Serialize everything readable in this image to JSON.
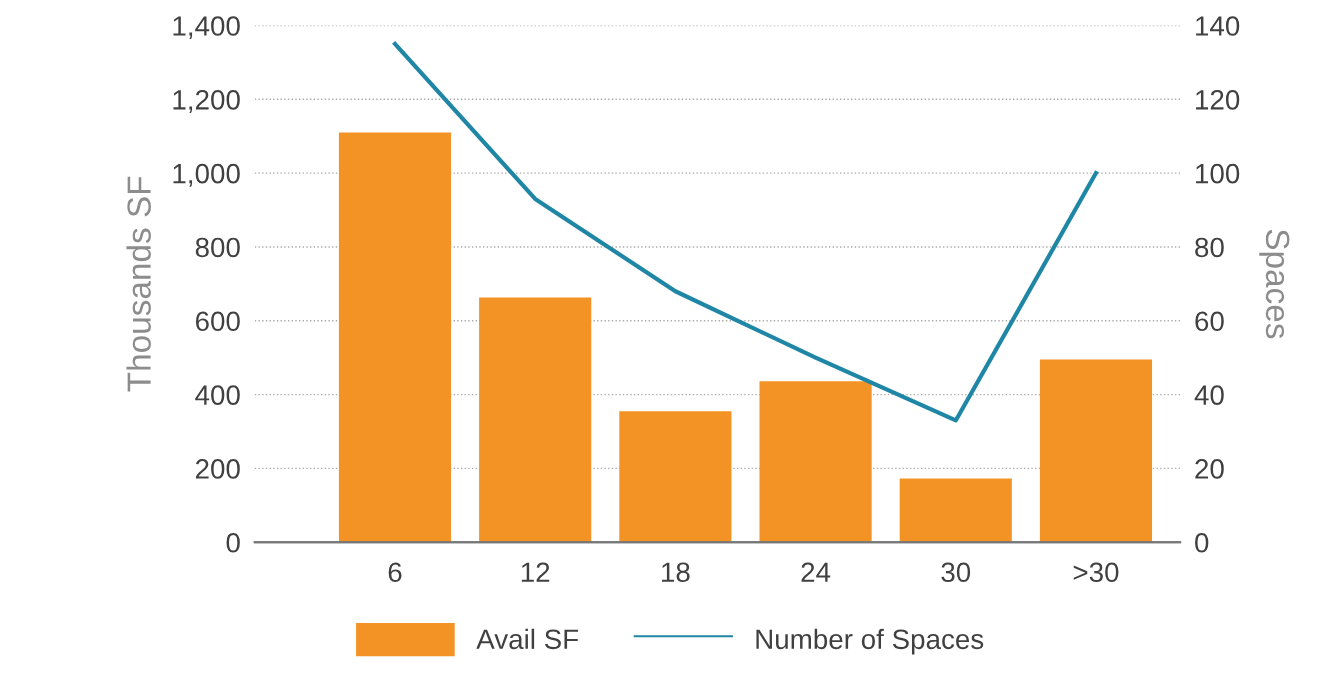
{
  "chart_data": {
    "type": "bar",
    "categories": [
      "6",
      "12",
      "18",
      "24",
      "30",
      ">30"
    ],
    "series": [
      {
        "name": "Avail SF",
        "color": "#f39325",
        "values": [
          1110,
          663,
          355,
          436,
          173,
          495
        ]
      },
      {
        "name": "Number of Spaces",
        "type": "line",
        "axis": "y2",
        "color": "#1f87a5",
        "values": [
          135,
          93,
          68,
          50,
          33,
          100
        ]
      }
    ],
    "ylabel": "Thousands SF",
    "y2label": "Spaces",
    "ylim": [
      0,
      1400
    ],
    "yticks": [
      {
        "value": 0,
        "label": "0"
      },
      {
        "value": 200,
        "label": "200"
      },
      {
        "value": 400,
        "label": "400"
      },
      {
        "value": 600,
        "label": "600"
      },
      {
        "value": 800,
        "label": "800"
      },
      {
        "value": 1000,
        "label": "1,000"
      },
      {
        "value": 1200,
        "label": "1,200"
      },
      {
        "value": 1400,
        "label": "1,400"
      }
    ],
    "y2lim": [
      0,
      140
    ],
    "y2ticks": [
      0,
      20,
      40,
      60,
      80,
      100,
      120,
      140
    ],
    "grid": "y",
    "legend": "bottom",
    "marker": "none",
    "line_style": "solid"
  }
}
